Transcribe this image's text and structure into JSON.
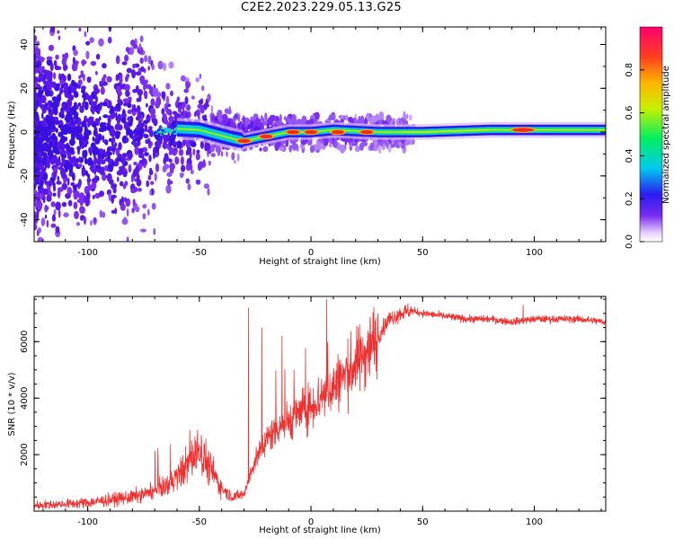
{
  "title": "C2E2.2023.229.05.13.G25",
  "chart_data": [
    {
      "type": "heatmap",
      "xlabel": "Height of straight line (km)",
      "ylabel": "Frequency (Hz)",
      "xlim": [
        -124,
        132
      ],
      "ylim": [
        -50,
        48
      ],
      "xticks": [
        -100,
        -50,
        0,
        50,
        100
      ],
      "yticks": [
        -40,
        -20,
        0,
        20,
        40
      ],
      "colorbar": {
        "label": "Normalized spectral amplitude",
        "range": [
          0,
          1
        ],
        "ticks": [
          "0.0",
          "0.2",
          "0.4",
          "0.6",
          "0.8"
        ],
        "colormap": "rainbow (white-purple-blue-cyan-green-yellow-orange-red)"
      },
      "ridge": [
        {
          "x": -70,
          "y": 2
        },
        {
          "x": -50,
          "y": 1
        },
        {
          "x": -35,
          "y": -3
        },
        {
          "x": -30,
          "y": -4
        },
        {
          "x": -20,
          "y": -2
        },
        {
          "x": -10,
          "y": 0
        },
        {
          "x": 0,
          "y": 0
        },
        {
          "x": 10,
          "y": 1
        },
        {
          "x": 30,
          "y": 0
        },
        {
          "x": 50,
          "y": 0
        },
        {
          "x": 80,
          "y": 1
        },
        {
          "x": 95,
          "y": 1
        },
        {
          "x": 132,
          "y": 1
        }
      ],
      "hotspots": [
        {
          "x": -30,
          "y": -4,
          "amplitude": 0.9
        },
        {
          "x": -20,
          "y": -2,
          "amplitude": 0.85
        },
        {
          "x": -8,
          "y": 0,
          "amplitude": 0.9
        },
        {
          "x": 0,
          "y": 0,
          "amplitude": 0.95
        },
        {
          "x": 12,
          "y": 0,
          "amplitude": 0.85
        },
        {
          "x": 25,
          "y": 0,
          "amplitude": 0.8
        },
        {
          "x": 95,
          "y": 1,
          "amplitude": 0.95
        }
      ]
    },
    {
      "type": "line",
      "xlabel": "Height of straight line (km)",
      "ylabel": "SNR (10 * v/v)",
      "xlim": [
        -124,
        132
      ],
      "ylim": [
        0,
        7600
      ],
      "xticks": [
        -100,
        -50,
        0,
        50,
        100
      ],
      "yticks": [
        2000,
        4000,
        6000
      ],
      "color": "#f03030",
      "series": [
        {
          "x": [
            -124,
            -110,
            -100,
            -90,
            -80,
            -70,
            -65,
            -60,
            -55,
            -50,
            -45,
            -40,
            -35,
            -30,
            -28,
            -25,
            -20,
            -15,
            -10,
            -5,
            0,
            5,
            10,
            15,
            20,
            25,
            30,
            35,
            40,
            45,
            50,
            60,
            70,
            80,
            90,
            100,
            110,
            120,
            132
          ],
          "values": [
            200,
            250,
            300,
            400,
            500,
            700,
            900,
            1200,
            1700,
            2200,
            1500,
            800,
            500,
            600,
            1100,
            1800,
            2500,
            3000,
            3200,
            3500,
            3700,
            4100,
            4400,
            4800,
            5200,
            5700,
            6200,
            6800,
            7000,
            7100,
            7000,
            6900,
            6800,
            6800,
            6700,
            6800,
            6800,
            6800,
            6700
          ],
          "spikes": [
            {
              "x": -28,
              "y": 7200
            },
            {
              "x": -22,
              "y": 6500
            },
            {
              "x": -13,
              "y": 6200
            },
            {
              "x": 7,
              "y": 7500
            },
            {
              "x": 95,
              "y": 7300
            }
          ]
        }
      ]
    }
  ]
}
